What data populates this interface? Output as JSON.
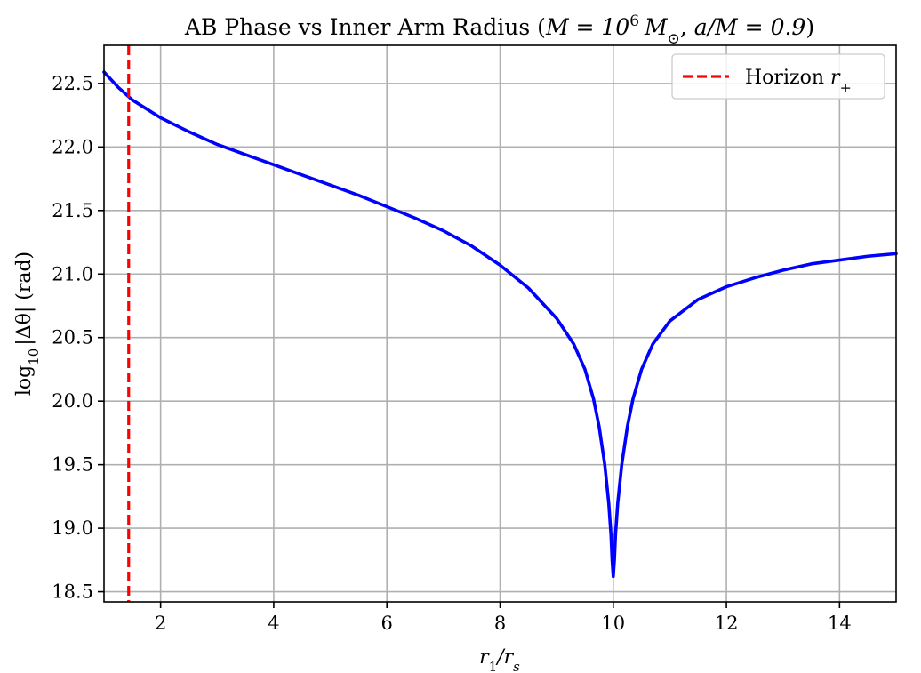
{
  "chart_data": {
    "type": "line",
    "title": "AB Phase vs Inner Arm Radius (",
    "title_math": {
      "M_eq": "M = 10",
      "exp": "6",
      "msun": "M",
      "odot": "⊙",
      "comma": ", ",
      "spin": "a/M = 0.9",
      "close": ")"
    },
    "xlabel_parts": {
      "r": "r",
      "sub1": "1",
      "slash": "/r",
      "subs": "s"
    },
    "ylabel_parts": {
      "log": "log",
      "sub": "10",
      "rest": "|Δθ| (rad)"
    },
    "xlim": [
      1.0,
      15.0
    ],
    "ylim": [
      18.42,
      22.8
    ],
    "x_ticks": [
      2,
      4,
      6,
      8,
      10,
      12,
      14
    ],
    "y_ticks": [
      18.5,
      19.0,
      19.5,
      20.0,
      20.5,
      21.0,
      21.5,
      22.0,
      22.5
    ],
    "x_tick_labels": [
      "2",
      "4",
      "6",
      "8",
      "10",
      "12",
      "14"
    ],
    "y_tick_labels": [
      "18.5",
      "19.0",
      "19.5",
      "20.0",
      "20.5",
      "21.0",
      "21.5",
      "22.0",
      "22.5"
    ],
    "grid": true,
    "legend_position": "top-right",
    "series": [
      {
        "color": "#0000ff",
        "points": [
          [
            1.0,
            22.59
          ],
          [
            1.25,
            22.47
          ],
          [
            1.5,
            22.37
          ],
          [
            1.75,
            22.3
          ],
          [
            2.0,
            22.23
          ],
          [
            2.5,
            22.12
          ],
          [
            3.0,
            22.02
          ],
          [
            3.5,
            21.94
          ],
          [
            4.0,
            21.86
          ],
          [
            4.5,
            21.78
          ],
          [
            5.0,
            21.7
          ],
          [
            5.5,
            21.62
          ],
          [
            6.0,
            21.53
          ],
          [
            6.5,
            21.44
          ],
          [
            7.0,
            21.34
          ],
          [
            7.5,
            21.22
          ],
          [
            8.0,
            21.07
          ],
          [
            8.5,
            20.89
          ],
          [
            9.0,
            20.65
          ],
          [
            9.3,
            20.45
          ],
          [
            9.5,
            20.25
          ],
          [
            9.65,
            20.02
          ],
          [
            9.75,
            19.8
          ],
          [
            9.85,
            19.5
          ],
          [
            9.92,
            19.2
          ],
          [
            9.96,
            18.95
          ],
          [
            9.98,
            18.75
          ],
          [
            10.0,
            18.62
          ],
          [
            10.02,
            18.75
          ],
          [
            10.04,
            18.95
          ],
          [
            10.08,
            19.2
          ],
          [
            10.15,
            19.5
          ],
          [
            10.25,
            19.8
          ],
          [
            10.35,
            20.02
          ],
          [
            10.5,
            20.25
          ],
          [
            10.7,
            20.45
          ],
          [
            11.0,
            20.63
          ],
          [
            11.5,
            20.8
          ],
          [
            12.0,
            20.9
          ],
          [
            12.5,
            20.97
          ],
          [
            13.0,
            21.03
          ],
          [
            13.5,
            21.08
          ],
          [
            14.0,
            21.11
          ],
          [
            14.5,
            21.14
          ],
          [
            15.0,
            21.16
          ]
        ]
      },
      {
        "name": "Horizon",
        "name_math": "r",
        "name_sub": "+",
        "color": "#ff0000",
        "vertical_x": 1.436
      }
    ]
  }
}
